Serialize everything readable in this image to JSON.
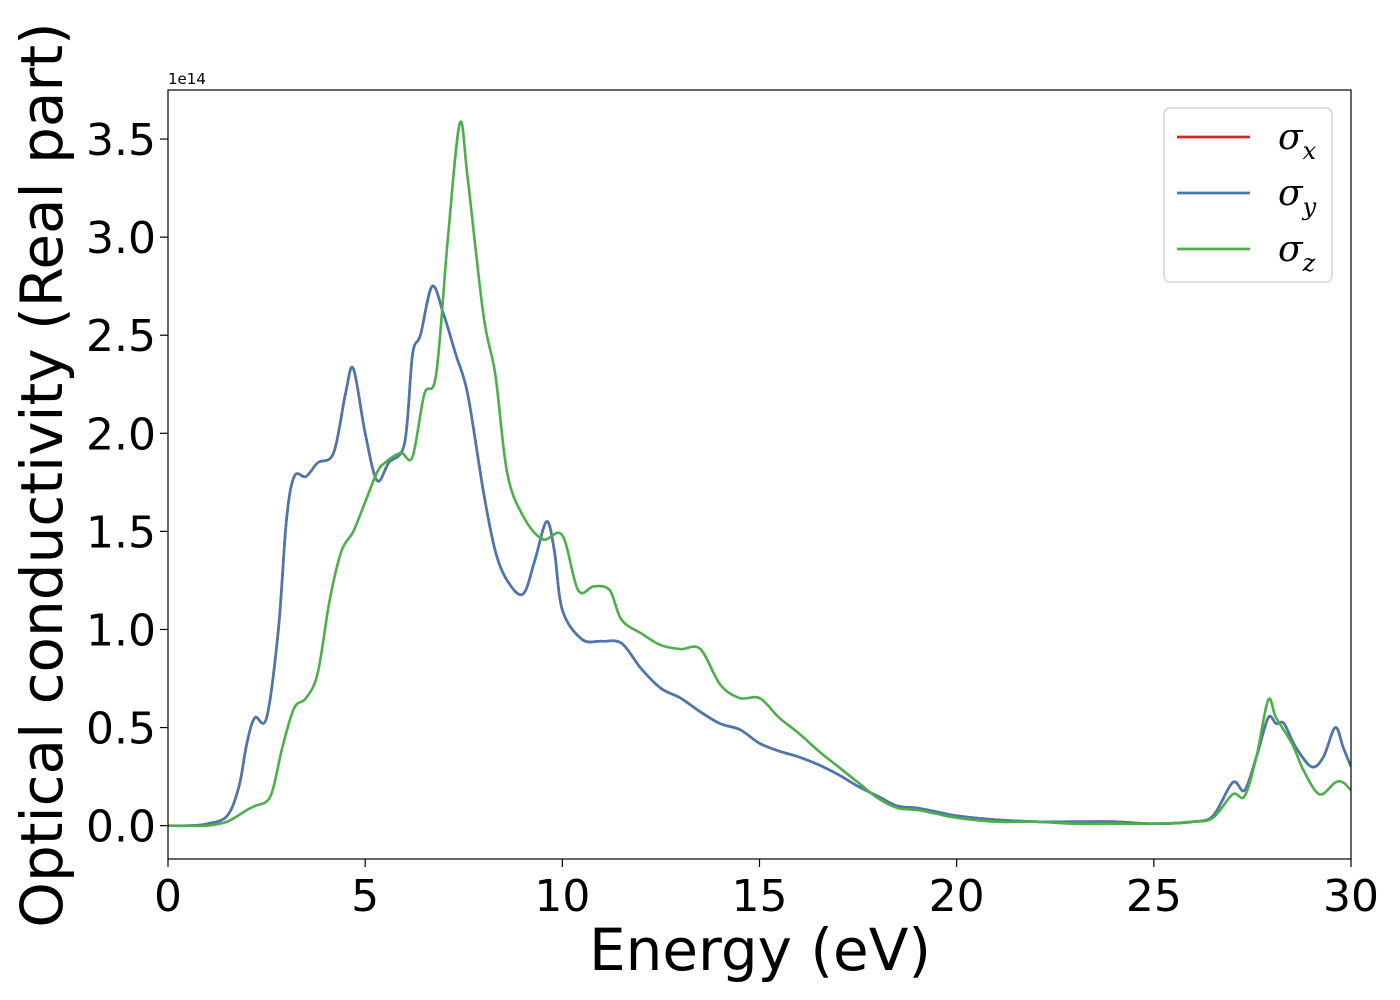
{
  "chart_data": {
    "type": "line",
    "title": "",
    "xlabel": "Energy (eV)",
    "ylabel": "Optical conductivity (Real part)",
    "y_offset_label": "1e14",
    "xlim": [
      0,
      30
    ],
    "ylim": [
      -0.17,
      3.75
    ],
    "x_ticks": [
      0,
      5,
      10,
      15,
      20,
      25,
      30
    ],
    "x_tick_labels": [
      "0",
      "5",
      "10",
      "15",
      "20",
      "25",
      "30"
    ],
    "y_ticks": [
      0.0,
      0.5,
      1.0,
      1.5,
      2.0,
      2.5,
      3.0,
      3.5
    ],
    "y_tick_labels": [
      "0.0",
      "0.5",
      "1.0",
      "1.5",
      "2.0",
      "2.5",
      "3.0",
      "3.5"
    ],
    "grid": false,
    "legend_position": "top-right",
    "series": [
      {
        "name": "σx",
        "legend_symbol": "σ",
        "legend_subscript": "x",
        "color": "#d62728",
        "x": [
          0,
          0.5,
          1.0,
          1.5,
          1.8,
          2.0,
          2.2,
          2.5,
          2.8,
          3.0,
          3.2,
          3.5,
          3.8,
          4.2,
          4.5,
          4.7,
          5.0,
          5.3,
          5.6,
          6.0,
          6.2,
          6.4,
          6.7,
          7.0,
          7.3,
          7.6,
          8.0,
          8.3,
          8.6,
          9.0,
          9.3,
          9.6,
          9.8,
          10.0,
          10.5,
          11.0,
          11.5,
          12.0,
          12.5,
          13.0,
          13.5,
          14.0,
          14.5,
          15.0,
          15.5,
          16.0,
          16.5,
          17.0,
          17.5,
          18.0,
          18.5,
          19.0,
          19.5,
          20.0,
          21.0,
          22.0,
          23.0,
          24.0,
          25.0,
          26.0,
          26.5,
          27.0,
          27.3,
          27.6,
          27.9,
          28.1,
          28.3,
          28.6,
          29.0,
          29.3,
          29.6,
          29.8,
          30.0
        ],
        "y": [
          0.0,
          0.0,
          0.01,
          0.05,
          0.2,
          0.42,
          0.55,
          0.55,
          1.0,
          1.55,
          1.78,
          1.78,
          1.85,
          1.9,
          2.2,
          2.33,
          2.0,
          1.76,
          1.85,
          1.95,
          2.4,
          2.5,
          2.75,
          2.6,
          2.4,
          2.2,
          1.7,
          1.4,
          1.25,
          1.18,
          1.35,
          1.55,
          1.4,
          1.1,
          0.95,
          0.94,
          0.93,
          0.8,
          0.7,
          0.65,
          0.58,
          0.52,
          0.49,
          0.42,
          0.38,
          0.35,
          0.31,
          0.26,
          0.2,
          0.15,
          0.1,
          0.09,
          0.07,
          0.05,
          0.03,
          0.02,
          0.02,
          0.02,
          0.01,
          0.02,
          0.05,
          0.22,
          0.18,
          0.35,
          0.55,
          0.52,
          0.52,
          0.4,
          0.3,
          0.35,
          0.5,
          0.4,
          0.3
        ]
      },
      {
        "name": "σy",
        "legend_symbol": "σ",
        "legend_subscript": "y",
        "color": "#4878b0",
        "x": [
          0,
          0.5,
          1.0,
          1.5,
          1.8,
          2.0,
          2.2,
          2.5,
          2.8,
          3.0,
          3.2,
          3.5,
          3.8,
          4.2,
          4.5,
          4.7,
          5.0,
          5.3,
          5.6,
          6.0,
          6.2,
          6.4,
          6.7,
          7.0,
          7.3,
          7.6,
          8.0,
          8.3,
          8.6,
          9.0,
          9.3,
          9.6,
          9.8,
          10.0,
          10.5,
          11.0,
          11.5,
          12.0,
          12.5,
          13.0,
          13.5,
          14.0,
          14.5,
          15.0,
          15.5,
          16.0,
          16.5,
          17.0,
          17.5,
          18.0,
          18.5,
          19.0,
          19.5,
          20.0,
          21.0,
          22.0,
          23.0,
          24.0,
          25.0,
          26.0,
          26.5,
          27.0,
          27.3,
          27.6,
          27.9,
          28.1,
          28.3,
          28.6,
          29.0,
          29.3,
          29.6,
          29.8,
          30.0
        ],
        "y": [
          0.0,
          0.0,
          0.01,
          0.05,
          0.2,
          0.42,
          0.55,
          0.55,
          1.0,
          1.55,
          1.78,
          1.78,
          1.85,
          1.9,
          2.2,
          2.33,
          2.0,
          1.76,
          1.85,
          1.95,
          2.4,
          2.5,
          2.75,
          2.6,
          2.4,
          2.2,
          1.7,
          1.4,
          1.25,
          1.18,
          1.35,
          1.55,
          1.4,
          1.1,
          0.95,
          0.94,
          0.93,
          0.8,
          0.7,
          0.65,
          0.58,
          0.52,
          0.49,
          0.42,
          0.38,
          0.35,
          0.31,
          0.26,
          0.2,
          0.15,
          0.1,
          0.09,
          0.07,
          0.05,
          0.03,
          0.02,
          0.02,
          0.02,
          0.01,
          0.02,
          0.05,
          0.22,
          0.18,
          0.35,
          0.55,
          0.52,
          0.52,
          0.4,
          0.3,
          0.35,
          0.5,
          0.4,
          0.3
        ]
      },
      {
        "name": "σz",
        "legend_symbol": "σ",
        "legend_subscript": "z",
        "color": "#4daf4a",
        "x": [
          0,
          0.5,
          1.0,
          1.5,
          2.0,
          2.2,
          2.6,
          2.9,
          3.2,
          3.5,
          3.8,
          4.1,
          4.4,
          4.7,
          5.0,
          5.3,
          5.5,
          5.9,
          6.2,
          6.5,
          6.8,
          7.1,
          7.4,
          7.6,
          8.0,
          8.3,
          8.6,
          9.0,
          9.5,
          10.0,
          10.4,
          10.8,
          11.2,
          11.5,
          12.0,
          12.5,
          13.0,
          13.5,
          14.0,
          14.5,
          15.0,
          15.5,
          16.0,
          16.5,
          17.0,
          17.5,
          18.0,
          18.5,
          19.0,
          19.5,
          20.0,
          21.0,
          22.0,
          23.0,
          24.0,
          25.0,
          26.0,
          26.5,
          27.0,
          27.3,
          27.6,
          27.9,
          28.1,
          28.5,
          28.8,
          29.2,
          29.6,
          29.8,
          30.0
        ],
        "y": [
          0.0,
          0.0,
          0.0,
          0.02,
          0.08,
          0.1,
          0.15,
          0.4,
          0.6,
          0.65,
          0.78,
          1.15,
          1.4,
          1.5,
          1.65,
          1.8,
          1.85,
          1.9,
          1.88,
          2.2,
          2.3,
          3.0,
          3.58,
          3.3,
          2.6,
          2.3,
          1.8,
          1.58,
          1.46,
          1.48,
          1.2,
          1.22,
          1.2,
          1.05,
          0.98,
          0.92,
          0.9,
          0.9,
          0.72,
          0.65,
          0.65,
          0.55,
          0.47,
          0.38,
          0.3,
          0.22,
          0.14,
          0.09,
          0.08,
          0.06,
          0.04,
          0.02,
          0.02,
          0.01,
          0.01,
          0.01,
          0.02,
          0.04,
          0.16,
          0.15,
          0.35,
          0.64,
          0.55,
          0.42,
          0.28,
          0.16,
          0.22,
          0.22,
          0.18
        ]
      }
    ]
  }
}
